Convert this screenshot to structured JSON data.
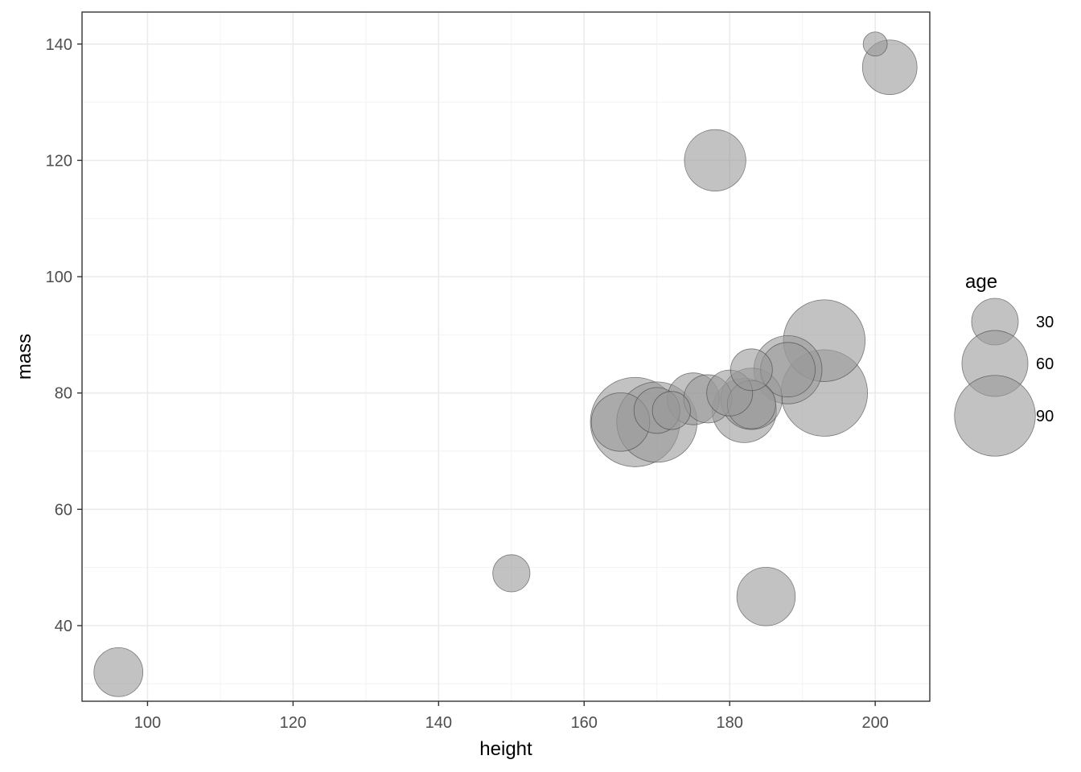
{
  "chart_data": {
    "type": "scatter",
    "title": "",
    "xlabel": "height",
    "ylabel": "mass",
    "xlim": [
      91,
      207.5
    ],
    "ylim": [
      27,
      145.5
    ],
    "x_ticks": [
      100,
      120,
      140,
      160,
      180,
      200
    ],
    "y_ticks": [
      40,
      60,
      80,
      100,
      120,
      140
    ],
    "grid": true,
    "size_variable": "age",
    "legend": {
      "title": "age",
      "position": "right",
      "entries": [
        {
          "label": "30",
          "value": 30
        },
        {
          "label": "60",
          "value": 60
        },
        {
          "label": "90",
          "value": 90
        }
      ]
    },
    "point_color": "#999999",
    "point_stroke": "#333333",
    "points": [
      {
        "x": 96,
        "y": 32,
        "size": 33
      },
      {
        "x": 150,
        "y": 49,
        "size": 19
      },
      {
        "x": 185,
        "y": 45,
        "size": 47
      },
      {
        "x": 178,
        "y": 120,
        "size": 52
      },
      {
        "x": 202,
        "y": 136,
        "size": 41
      },
      {
        "x": 200,
        "y": 140,
        "size": 8
      },
      {
        "x": 167,
        "y": 75,
        "size": 110
      },
      {
        "x": 170,
        "y": 75,
        "size": 89
      },
      {
        "x": 165,
        "y": 75,
        "size": 47
      },
      {
        "x": 170,
        "y": 77,
        "size": 29
      },
      {
        "x": 172,
        "y": 77,
        "size": 20
      },
      {
        "x": 175,
        "y": 79,
        "size": 37
      },
      {
        "x": 177,
        "y": 79,
        "size": 32
      },
      {
        "x": 180,
        "y": 80,
        "size": 29
      },
      {
        "x": 182,
        "y": 77,
        "size": 57
      },
      {
        "x": 183,
        "y": 79,
        "size": 52
      },
      {
        "x": 183,
        "y": 78,
        "size": 32
      },
      {
        "x": 183,
        "y": 84,
        "size": 24
      },
      {
        "x": 188,
        "y": 84,
        "size": 64
      },
      {
        "x": 188,
        "y": 84,
        "size": 41
      },
      {
        "x": 193,
        "y": 80,
        "size": 103
      },
      {
        "x": 193,
        "y": 89,
        "size": 92
      }
    ]
  }
}
